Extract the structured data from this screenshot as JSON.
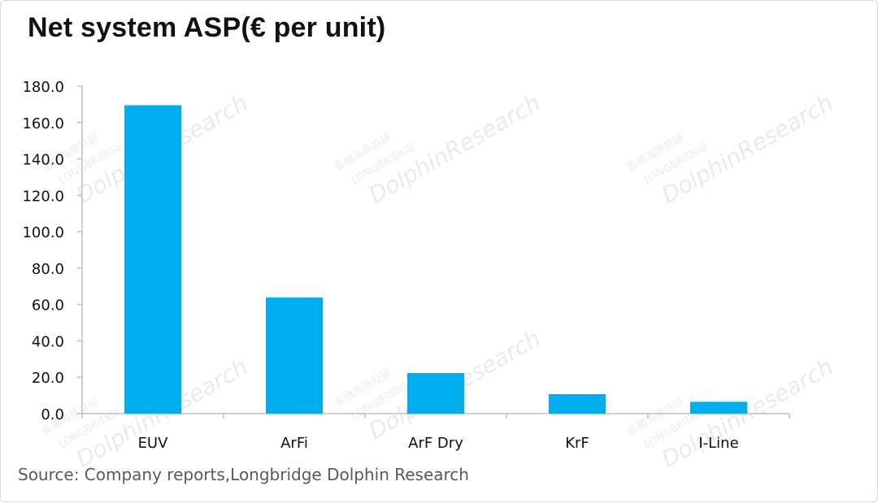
{
  "chart_data": {
    "type": "bar",
    "title": "Net system ASP(€ per unit)",
    "categories": [
      "EUV",
      "ArFi",
      "ArF Dry",
      "KrF",
      "I-Line"
    ],
    "values": [
      169.5,
      63.8,
      22.3,
      10.7,
      6.5
    ],
    "ylim": [
      0,
      180
    ],
    "yticks": [
      "0.0",
      "20.0",
      "40.0",
      "60.0",
      "80.0",
      "100.0",
      "120.0",
      "140.0",
      "160.0",
      "180.0"
    ],
    "xlabel": "",
    "ylabel": "",
    "grid": false,
    "legend": "none",
    "bar_color": "#00aeef",
    "axis_color": "#bfbfbf"
  },
  "source": "Source: Company reports,Longbridge Dolphin Research",
  "watermark": {
    "brand": "DolphinResearch",
    "sub": "LONGBRIDGE",
    "cn": "長橋海豚投研"
  }
}
